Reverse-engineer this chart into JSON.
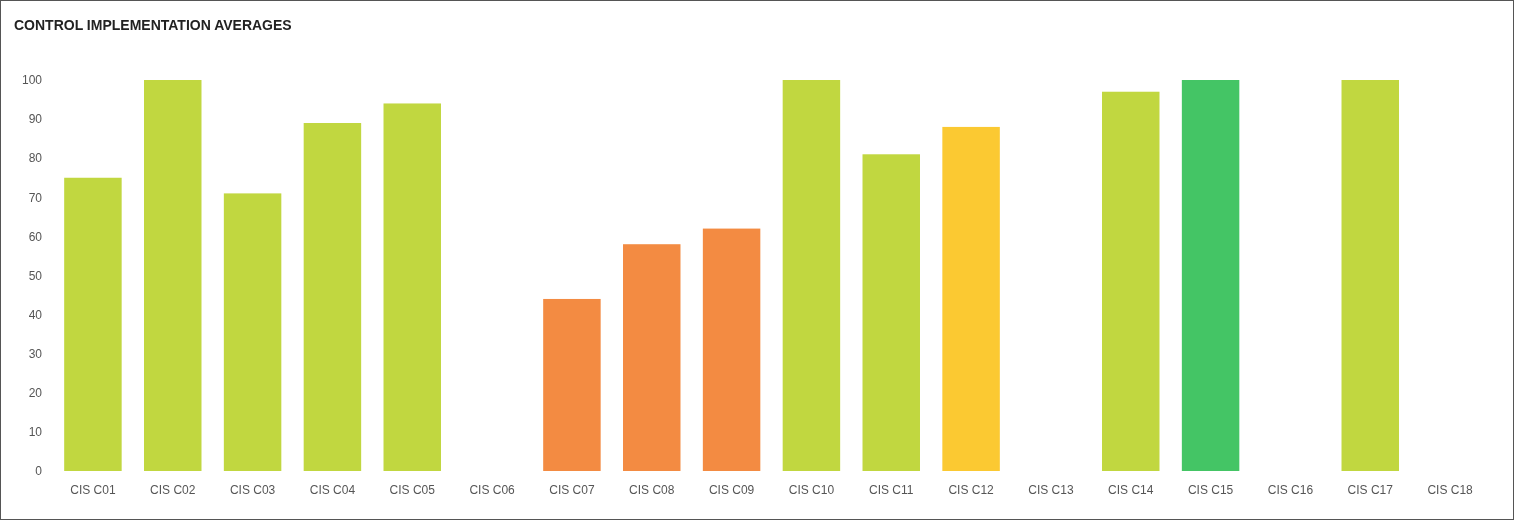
{
  "chart_data": {
    "type": "bar",
    "title": "CONTROL IMPLEMENTATION AVERAGES",
    "categories": [
      "CIS C01",
      "CIS C02",
      "CIS C03",
      "CIS C04",
      "CIS C05",
      "CIS C06",
      "CIS C07",
      "CIS C08",
      "CIS C09",
      "CIS C10",
      "CIS C11",
      "CIS C12",
      "CIS C13",
      "CIS C14",
      "CIS C15",
      "CIS C16",
      "CIS C17",
      "CIS C18"
    ],
    "values": [
      75,
      100,
      71,
      89,
      94,
      null,
      44,
      58,
      62,
      100,
      81,
      88,
      null,
      97,
      100,
      null,
      100,
      null
    ],
    "colors": [
      "#c1d740",
      "#c1d740",
      "#c1d740",
      "#c1d740",
      "#c1d740",
      null,
      "#f38b42",
      "#f38b42",
      "#f38b42",
      "#c1d740",
      "#c1d740",
      "#fbc932",
      null,
      "#c1d740",
      "#44c565",
      null,
      "#c1d740",
      null
    ],
    "ylim": [
      0,
      100
    ],
    "yticks": [
      0,
      10,
      20,
      30,
      40,
      50,
      60,
      70,
      80,
      90,
      100
    ],
    "grid": false
  }
}
